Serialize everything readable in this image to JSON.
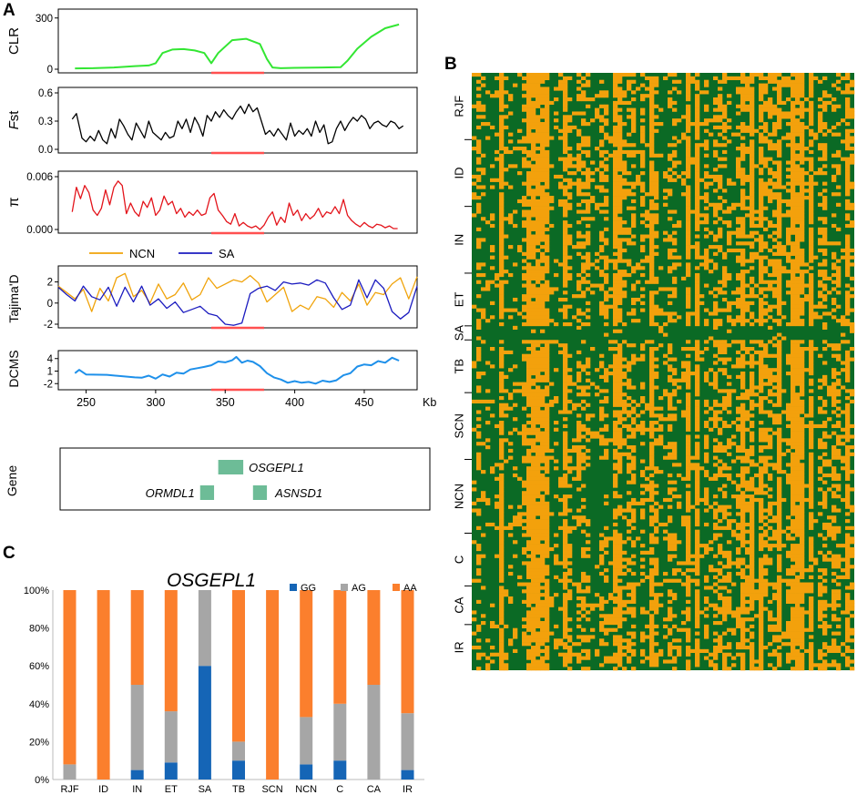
{
  "colors": {
    "clr": "#33e633",
    "fst": "#000000",
    "pi": "#e3141b",
    "ncn": "#f0a30a",
    "sa": "#1b1bbf",
    "dcms": "#1e90ea",
    "sweep": "#ff5050",
    "gene": "#6dbc97",
    "gg": "#1565b6",
    "ag": "#a6a6a6",
    "aa": "#fb7f2d",
    "heat_dark": "#0b6a25",
    "heat_light": "#f3a10c"
  },
  "panels": {
    "a": "A",
    "b": "B",
    "c": "C"
  },
  "panel_a": {
    "region": [
      340,
      378
    ],
    "x_axis": {
      "domain": [
        230,
        488
      ],
      "ticks": [
        250,
        300,
        350,
        400,
        450
      ],
      "unit": "Kb"
    },
    "clr": {
      "label": "CLR",
      "ylim": [
        0,
        320
      ],
      "ticks": [
        "0",
        "300"
      ],
      "x": [
        242,
        255,
        270,
        285,
        295,
        300,
        305,
        312,
        320,
        328,
        335,
        340,
        345,
        355,
        365,
        375,
        380,
        384,
        390,
        400,
        420,
        433,
        438,
        445,
        455,
        465,
        475
      ],
      "values": [
        5,
        6,
        10,
        18,
        22,
        35,
        95,
        115,
        118,
        110,
        95,
        35,
        95,
        170,
        178,
        148,
        60,
        10,
        6,
        8,
        10,
        12,
        50,
        120,
        190,
        240,
        262
      ]
    },
    "fst": {
      "label": "Fst",
      "label_prefix": "F",
      "label_suffix": "st",
      "ylim": [
        0,
        0.6
      ],
      "ticks": [
        "0.0",
        "0.3",
        "0.6"
      ],
      "x": [
        240,
        243,
        247,
        250,
        253,
        256,
        259,
        262,
        265,
        268,
        271,
        274,
        277,
        280,
        283,
        286,
        289,
        292,
        295,
        298,
        301,
        304,
        307,
        310,
        313,
        316,
        319,
        322,
        325,
        328,
        331,
        334,
        337,
        340,
        343,
        346,
        349,
        352,
        355,
        358,
        361,
        364,
        367,
        370,
        373,
        376,
        379,
        382,
        385,
        388,
        391,
        394,
        397,
        400,
        403,
        406,
        409,
        412,
        415,
        418,
        421,
        424,
        427,
        430,
        433,
        436,
        439,
        442,
        445,
        448,
        451,
        454,
        457,
        460,
        463,
        466,
        469,
        472,
        475,
        478
      ],
      "values": [
        0.32,
        0.38,
        0.12,
        0.08,
        0.14,
        0.09,
        0.2,
        0.1,
        0.06,
        0.22,
        0.12,
        0.32,
        0.25,
        0.16,
        0.1,
        0.28,
        0.2,
        0.12,
        0.3,
        0.18,
        0.14,
        0.1,
        0.18,
        0.12,
        0.14,
        0.3,
        0.22,
        0.32,
        0.18,
        0.34,
        0.26,
        0.14,
        0.36,
        0.3,
        0.4,
        0.34,
        0.42,
        0.36,
        0.32,
        0.4,
        0.46,
        0.38,
        0.48,
        0.4,
        0.44,
        0.3,
        0.16,
        0.2,
        0.14,
        0.22,
        0.16,
        0.1,
        0.28,
        0.14,
        0.2,
        0.16,
        0.22,
        0.14,
        0.3,
        0.18,
        0.26,
        0.06,
        0.08,
        0.22,
        0.3,
        0.2,
        0.28,
        0.34,
        0.3,
        0.36,
        0.32,
        0.22,
        0.28,
        0.3,
        0.26,
        0.24,
        0.3,
        0.28,
        0.22,
        0.25
      ]
    },
    "pi": {
      "label": "π",
      "ylim": [
        0,
        0.006
      ],
      "ticks": [
        "0.000",
        "0.006"
      ],
      "x": [
        240,
        243,
        246,
        249,
        252,
        255,
        258,
        261,
        264,
        267,
        270,
        273,
        276,
        279,
        282,
        285,
        288,
        291,
        294,
        297,
        300,
        303,
        306,
        309,
        312,
        315,
        318,
        321,
        324,
        327,
        330,
        333,
        336,
        339,
        342,
        345,
        348,
        351,
        354,
        357,
        360,
        363,
        366,
        369,
        372,
        375,
        378,
        381,
        384,
        387,
        390,
        393,
        396,
        399,
        402,
        405,
        408,
        411,
        414,
        417,
        420,
        423,
        426,
        429,
        432,
        435,
        438,
        441,
        444,
        447,
        450,
        453,
        456,
        459,
        462,
        465,
        468,
        471,
        474
      ],
      "values": [
        0.002,
        0.0048,
        0.0035,
        0.005,
        0.0042,
        0.0022,
        0.0016,
        0.0024,
        0.0045,
        0.0028,
        0.0048,
        0.0055,
        0.005,
        0.0018,
        0.003,
        0.002,
        0.0015,
        0.0032,
        0.0025,
        0.0036,
        0.0016,
        0.0022,
        0.0038,
        0.0028,
        0.0032,
        0.0018,
        0.0024,
        0.0014,
        0.002,
        0.0016,
        0.0022,
        0.0016,
        0.0018,
        0.0036,
        0.0041,
        0.0022,
        0.0016,
        0.0009,
        0.0006,
        0.0018,
        0.0004,
        0.0008,
        0.0004,
        0.0002,
        0.0004,
        0.0,
        0.0005,
        0.0014,
        0.002,
        0.0005,
        0.0014,
        0.0008,
        0.003,
        0.0016,
        0.0022,
        0.001,
        0.0018,
        0.0012,
        0.0016,
        0.0024,
        0.0014,
        0.002,
        0.0018,
        0.0026,
        0.0018,
        0.0034,
        0.0016,
        0.001,
        0.0006,
        0.0003,
        0.0008,
        0.0004,
        0.0002,
        0.0006,
        0.0005,
        0.0002,
        0.0004,
        0.0001,
        0.0001
      ]
    },
    "tajima": {
      "label": "Tajima'D",
      "ylim": [
        -2,
        3
      ],
      "ticks": [
        "-2",
        "0",
        "2"
      ],
      "legend": [
        "NCN",
        "SA"
      ],
      "x": [
        230,
        236,
        242,
        248,
        254,
        260,
        266,
        272,
        278,
        284,
        290,
        296,
        302,
        308,
        314,
        320,
        326,
        332,
        338,
        344,
        350,
        356,
        362,
        368,
        374,
        380,
        386,
        392,
        398,
        404,
        410,
        416,
        422,
        428,
        434,
        440,
        446,
        452,
        458,
        464,
        470,
        476,
        482,
        488
      ],
      "ncn": [
        1.6,
        1.0,
        0.4,
        1.3,
        -0.8,
        1.4,
        0.2,
        2.4,
        2.8,
        0.6,
        1.2,
        0.0,
        1.8,
        0.4,
        0.8,
        1.9,
        0.3,
        0.8,
        2.4,
        1.4,
        1.8,
        2.2,
        2.0,
        2.6,
        1.9,
        0.1,
        0.8,
        1.5,
        -0.8,
        -0.2,
        -0.6,
        0.6,
        0.4,
        -0.4,
        1.0,
        0.2,
        1.8,
        -0.2,
        1.0,
        0.8,
        1.8,
        2.4,
        0.4,
        2.5
      ],
      "sa": [
        1.5,
        0.8,
        0.2,
        1.6,
        0.6,
        0.3,
        1.5,
        -0.3,
        1.5,
        0.1,
        1.6,
        -0.2,
        0.4,
        -0.5,
        0.1,
        -0.9,
        -0.6,
        -0.3,
        -1.0,
        -1.2,
        -2.0,
        -2.1,
        -1.9,
        0.9,
        1.4,
        1.6,
        1.2,
        2.0,
        1.8,
        1.9,
        1.7,
        2.2,
        1.9,
        0.5,
        -0.6,
        -0.2,
        2.2,
        0.5,
        2.2,
        1.4,
        -0.8,
        -1.5,
        -0.9,
        1.6
      ]
    },
    "dcms": {
      "label": "DCMS",
      "ylim": [
        -2.6,
        4.6
      ],
      "ticks": [
        "-2",
        "1",
        "4"
      ],
      "x": [
        242,
        245,
        250,
        265,
        285,
        290,
        295,
        300,
        305,
        310,
        315,
        320,
        325,
        330,
        335,
        340,
        345,
        350,
        355,
        358,
        362,
        366,
        370,
        375,
        380,
        385,
        390,
        395,
        400,
        405,
        410,
        415,
        420,
        425,
        430,
        435,
        440,
        445,
        450,
        455,
        460,
        465,
        470,
        475
      ],
      "values": [
        0.5,
        1.3,
        0.2,
        0.1,
        -0.5,
        -0.6,
        -0.1,
        -0.8,
        0.2,
        -0.3,
        0.6,
        0.4,
        1.4,
        1.7,
        2.0,
        2.4,
        3.3,
        3.1,
        3.6,
        4.4,
        3.0,
        3.5,
        3.2,
        2.2,
        0.5,
        -0.5,
        -1.0,
        -1.8,
        -1.4,
        -1.8,
        -1.6,
        -2.0,
        -1.3,
        -1.6,
        -1.2,
        0.0,
        0.5,
        2.1,
        2.6,
        2.4,
        3.4,
        3.0,
        4.2,
        3.5
      ]
    },
    "gene_track": {
      "label": "Gene",
      "genes": [
        {
          "name": "OSGEPL1",
          "start": 345,
          "end": 363
        },
        {
          "name": "ORMDL1",
          "start": 332,
          "end": 342
        },
        {
          "name": "ASNSD1",
          "start": 370,
          "end": 380
        }
      ]
    }
  },
  "panel_b": {
    "populations": [
      "RJF",
      "ID",
      "IN",
      "ET",
      "SA",
      "TB",
      "SCN",
      "NCN",
      "C",
      "CA",
      "IR"
    ],
    "rows_per_population": [
      19,
      19,
      19,
      15,
      4,
      15,
      19,
      21,
      15,
      11,
      13
    ],
    "columns": 84,
    "alleles": [
      "dark",
      "light"
    ]
  },
  "chart_data": {
    "type": "bar",
    "stacked": true,
    "title": "OSGEPL1",
    "categories": [
      "RJF",
      "ID",
      "IN",
      "ET",
      "SA",
      "TB",
      "SCN",
      "NCN",
      "C",
      "CA",
      "IR"
    ],
    "series": [
      {
        "name": "GG",
        "values": [
          0,
          0,
          5,
          9,
          60,
          10,
          0,
          8,
          10,
          0,
          5
        ]
      },
      {
        "name": "AG",
        "values": [
          8,
          0,
          45,
          27,
          40,
          10,
          0,
          25,
          30,
          50,
          30
        ]
      },
      {
        "name": "AA",
        "values": [
          92,
          100,
          50,
          64,
          0,
          80,
          100,
          67,
          60,
          50,
          65
        ]
      }
    ],
    "ylim": [
      0,
      100
    ],
    "yticks": [
      "0%",
      "20%",
      "40%",
      "60%",
      "80%",
      "100%"
    ],
    "legend": "top-right"
  }
}
